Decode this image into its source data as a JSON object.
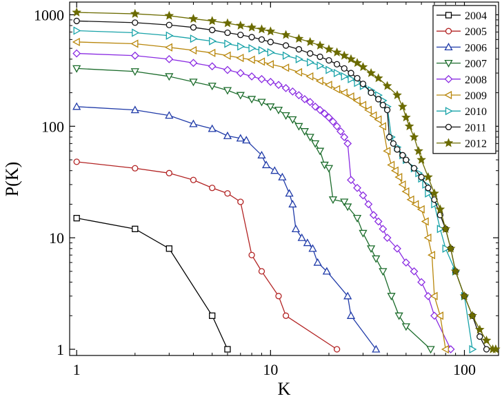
{
  "chart_data": {
    "type": "line",
    "title": "",
    "xlabel": "K",
    "ylabel": "P(K)",
    "xscale": "log",
    "yscale": "log",
    "xlim": [
      0.92,
      150
    ],
    "ylim": [
      0.88,
      1300
    ],
    "x_ticks": [
      {
        "value": 1,
        "label": "1"
      },
      {
        "value": 10,
        "label": "10"
      },
      {
        "value": 100,
        "label": "100"
      }
    ],
    "y_ticks": [
      {
        "value": 1,
        "label": "1"
      },
      {
        "value": 10,
        "label": "10"
      },
      {
        "value": 100,
        "label": "100"
      },
      {
        "value": 1000,
        "label": "1000"
      }
    ],
    "grid": false,
    "legend_position": "top-right",
    "series": [
      {
        "name": "2004",
        "color": "#000000",
        "marker": "square",
        "x": [
          1,
          2,
          3,
          5,
          6
        ],
        "y": [
          15,
          12,
          8,
          2,
          1
        ]
      },
      {
        "name": "2005",
        "color": "#b22222",
        "marker": "circle",
        "x": [
          1,
          2,
          3,
          4,
          5,
          6,
          7,
          8,
          9,
          11,
          12,
          22
        ],
        "y": [
          48,
          42,
          38,
          33,
          28,
          25,
          21,
          7,
          5,
          3,
          2,
          1
        ]
      },
      {
        "name": "2006",
        "color": "#1f3aa8",
        "marker": "triangle-up",
        "x": [
          1,
          2,
          3,
          4,
          5,
          6,
          7,
          7.5,
          9,
          9.5,
          10.5,
          11.5,
          12.5,
          13,
          13.5,
          14.5,
          15.5,
          16.5,
          17.5,
          19.5,
          25,
          26,
          35
        ],
        "y": [
          150,
          140,
          125,
          105,
          95,
          82,
          78,
          75,
          55,
          45,
          40,
          35,
          25,
          20,
          12,
          10,
          9,
          8,
          6,
          5,
          3,
          2,
          1
        ]
      },
      {
        "name": "2007",
        "color": "#1a6b2a",
        "marker": "triangle-down",
        "x": [
          1,
          2,
          3,
          4,
          5,
          6,
          7,
          8,
          9,
          10,
          11,
          12,
          13,
          14,
          15,
          16,
          17,
          18,
          19,
          20,
          21,
          24,
          25,
          28,
          30,
          33,
          35,
          38,
          42,
          46,
          50,
          67
        ],
        "y": [
          330,
          310,
          280,
          250,
          230,
          210,
          190,
          175,
          165,
          150,
          140,
          125,
          115,
          100,
          90,
          80,
          70,
          60,
          45,
          42,
          22,
          21,
          19,
          15,
          11,
          8,
          6.5,
          5,
          3,
          2,
          1.6,
          1
        ]
      },
      {
        "name": "2008",
        "color": "#8a2be2",
        "marker": "diamond",
        "x": [
          1,
          2,
          3,
          4,
          5,
          6,
          7,
          8,
          9,
          10,
          11,
          12,
          13,
          14,
          15,
          16,
          17,
          18,
          19,
          20,
          21,
          22,
          23,
          24,
          25,
          26,
          28,
          30,
          32,
          34,
          36,
          38,
          40,
          45,
          50,
          55,
          60,
          65,
          70,
          85
        ],
        "y": [
          450,
          430,
          400,
          370,
          345,
          320,
          300,
          280,
          265,
          250,
          235,
          220,
          205,
          190,
          175,
          165,
          150,
          140,
          130,
          120,
          110,
          100,
          90,
          80,
          70,
          33,
          28,
          24,
          20,
          16,
          14,
          12,
          10,
          8,
          6,
          5,
          4,
          3,
          2,
          1
        ]
      },
      {
        "name": "2009",
        "color": "#b8860b",
        "marker": "triangle-left",
        "x": [
          1,
          2,
          3,
          4,
          5,
          6,
          7,
          8,
          9,
          10,
          12,
          14,
          16,
          18,
          20,
          22,
          24,
          26,
          28,
          30,
          32,
          34,
          36,
          38,
          40,
          42,
          44,
          46,
          48,
          50,
          53,
          56,
          60,
          63,
          65,
          68,
          70,
          75,
          80
        ],
        "y": [
          570,
          550,
          510,
          480,
          455,
          430,
          410,
          395,
          380,
          360,
          335,
          305,
          280,
          255,
          235,
          215,
          200,
          185,
          170,
          155,
          140,
          125,
          115,
          100,
          60,
          45,
          40,
          35,
          30,
          26,
          22,
          20,
          18,
          14,
          10,
          7,
          3,
          2,
          1
        ]
      },
      {
        "name": "2010",
        "color": "#17a2a8",
        "marker": "triangle-right",
        "x": [
          1,
          2,
          3,
          4,
          5,
          6,
          7,
          8,
          9,
          10,
          12,
          14,
          16,
          18,
          20,
          22,
          24,
          26,
          28,
          30,
          33,
          36,
          38,
          40,
          42,
          45,
          48,
          50,
          55,
          58,
          60,
          63,
          65,
          70,
          75,
          80,
          90,
          100,
          110
        ],
        "y": [
          720,
          690,
          650,
          610,
          580,
          550,
          520,
          500,
          480,
          460,
          430,
          400,
          375,
          350,
          320,
          300,
          280,
          265,
          245,
          230,
          210,
          190,
          170,
          150,
          80,
          65,
          55,
          50,
          42,
          38,
          34,
          30,
          25,
          20,
          12,
          8,
          5,
          3,
          1
        ]
      },
      {
        "name": "2011",
        "color": "#111111",
        "marker": "circle",
        "x": [
          1,
          2,
          3,
          4,
          5,
          6,
          7,
          8,
          9,
          10,
          12,
          14,
          16,
          18,
          20,
          22,
          24,
          26,
          28,
          30,
          33,
          36,
          38,
          40,
          41,
          43,
          45,
          48,
          50,
          55,
          60,
          65,
          70,
          75,
          80,
          85,
          90,
          100,
          110,
          120,
          130
        ],
        "y": [
          880,
          850,
          810,
          770,
          730,
          690,
          660,
          630,
          600,
          570,
          530,
          490,
          450,
          420,
          390,
          360,
          330,
          300,
          270,
          240,
          200,
          175,
          155,
          140,
          80,
          70,
          62,
          55,
          50,
          42,
          35,
          28,
          22,
          16,
          12,
          8,
          5,
          3,
          2,
          1.3,
          1
        ]
      },
      {
        "name": "2012",
        "color": "#6b6b00",
        "marker": "star",
        "x": [
          1,
          2,
          3,
          4,
          5,
          6,
          7,
          8,
          9,
          10,
          12,
          14,
          16,
          18,
          20,
          22,
          24,
          26,
          28,
          30,
          33,
          36,
          40,
          45,
          48,
          50,
          52,
          55,
          58,
          60,
          65,
          70,
          75,
          80,
          85,
          90,
          100,
          110,
          120,
          130,
          140,
          145
        ],
        "y": [
          1050,
          1020,
          980,
          920,
          880,
          840,
          800,
          770,
          740,
          710,
          660,
          610,
          570,
          530,
          490,
          460,
          430,
          400,
          370,
          340,
          300,
          270,
          230,
          190,
          150,
          120,
          100,
          80,
          60,
          50,
          35,
          25,
          18,
          12,
          8,
          5,
          3,
          2,
          1.5,
          1.2,
          1,
          1
        ]
      }
    ]
  }
}
